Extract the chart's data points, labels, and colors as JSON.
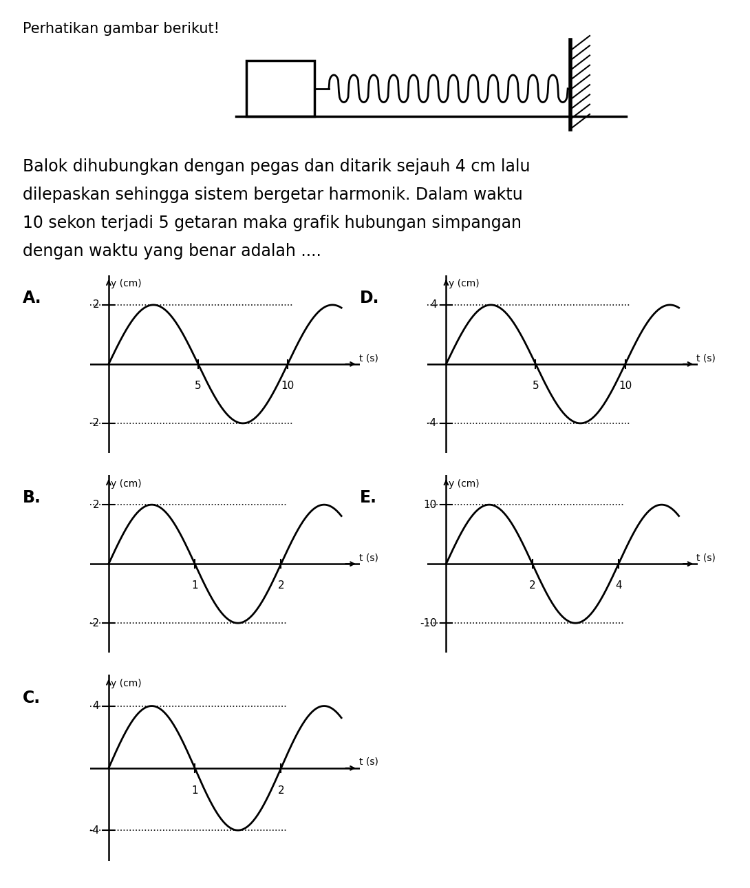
{
  "title_line1": "Perhatikan gambar berikut!",
  "problem_lines": [
    "Balok dihubungkan dengan pegas dan ditarik sejauh 4 cm lalu",
    "dilepaskan sehingga sistem bergetar harmonik. Dalam waktu",
    "10 sekon terjadi 5 getaran maka grafik hubungan simpangan",
    "dengan waktu yang benar adalah ...."
  ],
  "graphs": [
    {
      "label": "A.",
      "amplitude": 2,
      "period": 10,
      "t_max": 13,
      "t_ticks": [
        5,
        10
      ],
      "y_ticks_pos": [
        2
      ],
      "y_ticks_neg": [
        -2
      ],
      "y_label": "y (cm)",
      "x_label": "t (s)"
    },
    {
      "label": "D.",
      "amplitude": 4,
      "period": 10,
      "t_max": 13,
      "t_ticks": [
        5,
        10
      ],
      "y_ticks_pos": [
        4
      ],
      "y_ticks_neg": [
        -4
      ],
      "y_label": "y (cm)",
      "x_label": "t (s)"
    },
    {
      "label": "B.",
      "amplitude": 2,
      "period": 2,
      "t_max": 2.7,
      "t_ticks": [
        1,
        2
      ],
      "y_ticks_pos": [
        2
      ],
      "y_ticks_neg": [
        -2
      ],
      "y_label": "y (cm)",
      "x_label": "t (s)"
    },
    {
      "label": "E.",
      "amplitude": 10,
      "period": 4,
      "t_max": 5.4,
      "t_ticks": [
        2,
        4
      ],
      "y_ticks_pos": [
        10
      ],
      "y_ticks_neg": [
        -10
      ],
      "y_label": "y (cm)",
      "x_label": "t (s)"
    },
    {
      "label": "C.",
      "amplitude": 4,
      "period": 2,
      "t_max": 2.7,
      "t_ticks": [
        1,
        2
      ],
      "y_ticks_pos": [
        4
      ],
      "y_ticks_neg": [
        -4
      ],
      "y_label": "y (cm)",
      "x_label": "t (s)"
    }
  ],
  "bg_color": "#ffffff",
  "line_color": "#000000",
  "title_fontsize": 15,
  "body_fontsize": 17,
  "label_fontsize": 17,
  "graph_label_fontsize": 17,
  "tick_fontsize": 11,
  "axis_label_fontsize": 10
}
